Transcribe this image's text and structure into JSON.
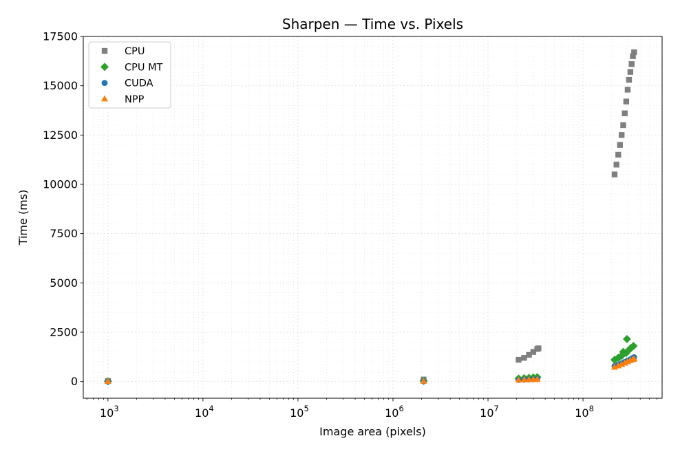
{
  "chart_data": {
    "type": "scatter",
    "title": "Sharpen — Time vs. Pixels",
    "xlabel": "Image area (pixels)",
    "ylabel": "Time (ms)",
    "xscale": "log",
    "xlim": [
      550,
      680000000
    ],
    "ylim": [
      -850,
      17500
    ],
    "x_ticks": [
      {
        "value": 1000,
        "base": "10",
        "exp": "3"
      },
      {
        "value": 10000,
        "base": "10",
        "exp": "4"
      },
      {
        "value": 100000,
        "base": "10",
        "exp": "5"
      },
      {
        "value": 1000000,
        "base": "10",
        "exp": "6"
      },
      {
        "value": 10000000,
        "base": "10",
        "exp": "7"
      },
      {
        "value": 100000000,
        "base": "10",
        "exp": "8"
      }
    ],
    "y_ticks": [
      0,
      2500,
      5000,
      7500,
      10000,
      12500,
      15000,
      17500
    ],
    "grid": true,
    "legend_position": "top-left",
    "series": [
      {
        "name": "CPU",
        "marker": "square",
        "color": "#7f7f7f",
        "points": [
          [
            1000,
            20
          ],
          [
            2100000,
            100
          ],
          [
            21000000,
            1100
          ],
          [
            24000000,
            1200
          ],
          [
            27000000,
            1350
          ],
          [
            30000000,
            1500
          ],
          [
            33000000,
            1650
          ],
          [
            34000000,
            1680
          ],
          [
            215000000,
            10500
          ],
          [
            225000000,
            11000
          ],
          [
            235000000,
            11500
          ],
          [
            245000000,
            12000
          ],
          [
            255000000,
            12500
          ],
          [
            265000000,
            13000
          ],
          [
            275000000,
            13600
          ],
          [
            285000000,
            14200
          ],
          [
            295000000,
            14800
          ],
          [
            305000000,
            15300
          ],
          [
            315000000,
            15700
          ],
          [
            325000000,
            16100
          ],
          [
            335000000,
            16500
          ],
          [
            345000000,
            16700
          ]
        ]
      },
      {
        "name": "CPU MT",
        "marker": "diamond",
        "color": "#2ca02c",
        "points": [
          [
            1000,
            10
          ],
          [
            2100000,
            30
          ],
          [
            21000000,
            150
          ],
          [
            24000000,
            165
          ],
          [
            27000000,
            180
          ],
          [
            30000000,
            200
          ],
          [
            33000000,
            215
          ],
          [
            215000000,
            1100
          ],
          [
            235000000,
            1200
          ],
          [
            255000000,
            1300
          ],
          [
            265000000,
            1500
          ],
          [
            285000000,
            1450
          ],
          [
            290000000,
            2150
          ],
          [
            305000000,
            1600
          ],
          [
            320000000,
            1700
          ],
          [
            340000000,
            1800
          ]
        ]
      },
      {
        "name": "CUDA",
        "marker": "circle",
        "color": "#1f77b4",
        "points": [
          [
            1000,
            5
          ],
          [
            2100000,
            15
          ],
          [
            21000000,
            80
          ],
          [
            24000000,
            90
          ],
          [
            27000000,
            100
          ],
          [
            30000000,
            110
          ],
          [
            33000000,
            120
          ],
          [
            215000000,
            780
          ],
          [
            235000000,
            850
          ],
          [
            255000000,
            920
          ],
          [
            275000000,
            990
          ],
          [
            295000000,
            1060
          ],
          [
            315000000,
            1120
          ],
          [
            335000000,
            1190
          ],
          [
            345000000,
            1230
          ]
        ]
      },
      {
        "name": "NPP",
        "marker": "triangle",
        "color": "#ff7f0e",
        "points": [
          [
            1000,
            5
          ],
          [
            2100000,
            12
          ],
          [
            21000000,
            70
          ],
          [
            24000000,
            78
          ],
          [
            27000000,
            86
          ],
          [
            30000000,
            94
          ],
          [
            33000000,
            102
          ],
          [
            215000000,
            720
          ],
          [
            235000000,
            790
          ],
          [
            255000000,
            860
          ],
          [
            275000000,
            930
          ],
          [
            295000000,
            1000
          ],
          [
            315000000,
            1060
          ],
          [
            335000000,
            1110
          ],
          [
            345000000,
            1140
          ]
        ]
      }
    ]
  }
}
